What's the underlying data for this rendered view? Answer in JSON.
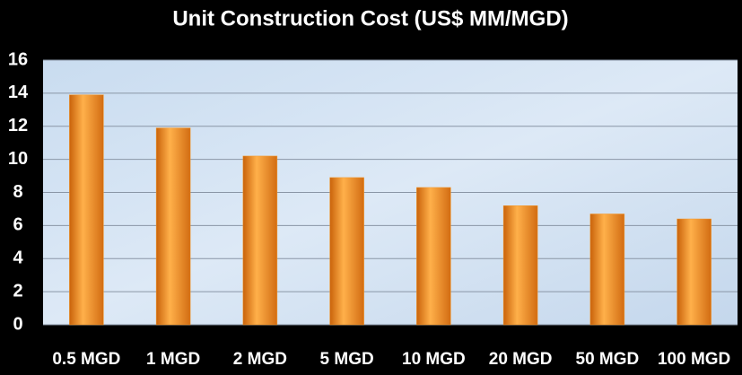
{
  "chart_data": {
    "type": "bar",
    "title": "Unit Construction Cost (US$ MM/MGD)",
    "categories": [
      "0.5 MGD",
      "1 MGD",
      "2 MGD",
      "5 MGD",
      "10 MGD",
      "20 MGD",
      "50 MGD",
      "100 MGD"
    ],
    "values": [
      13.9,
      11.9,
      10.2,
      8.9,
      8.3,
      7.2,
      6.7,
      6.4
    ],
    "color": "#f39a2e",
    "ylim": [
      0,
      16
    ],
    "yticks": [
      0,
      2,
      4,
      6,
      8,
      10,
      12,
      14,
      16
    ],
    "grid": true
  }
}
